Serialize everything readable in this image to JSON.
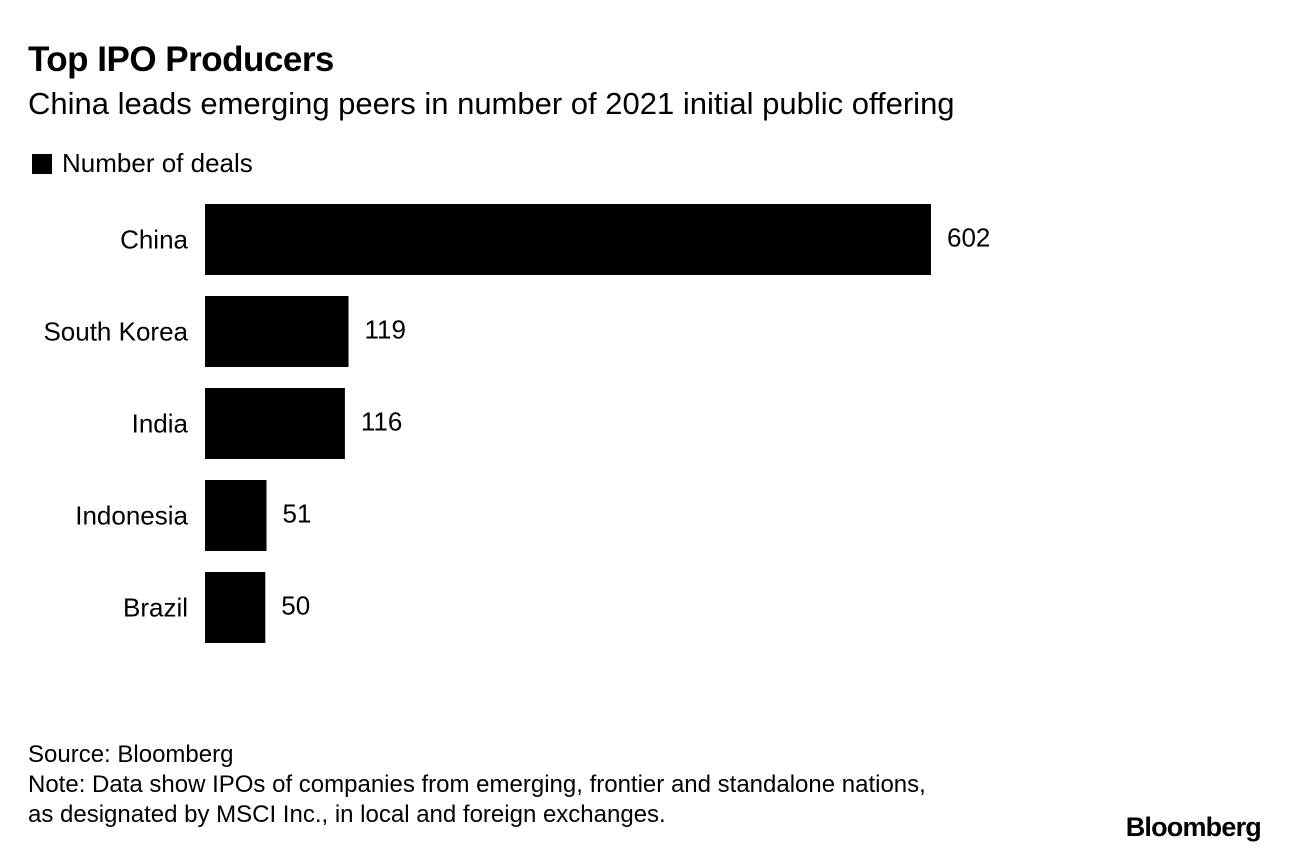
{
  "chart_data": {
    "type": "bar",
    "orientation": "horizontal",
    "title": "Top IPO Producers",
    "subtitle": "China leads emerging peers in number of 2021 initial public offering",
    "legend": [
      {
        "label": "Number of deals",
        "color": "#000000"
      }
    ],
    "categories": [
      "China",
      "South Korea",
      "India",
      "Indonesia",
      "Brazil"
    ],
    "values": [
      602,
      119,
      116,
      51,
      50
    ],
    "value_labels": [
      "602",
      "119",
      "116",
      "51",
      "50"
    ],
    "xlim": [
      0,
      602
    ],
    "grid": false,
    "bar_color": "#000000"
  },
  "footer": {
    "source": "Source: Bloomberg",
    "note_line1": "Note: Data show IPOs of companies from emerging, frontier and standalone nations,",
    "note_line2": "as designated by MSCI Inc., in local and foreign exchanges."
  },
  "brand": "Bloomberg"
}
